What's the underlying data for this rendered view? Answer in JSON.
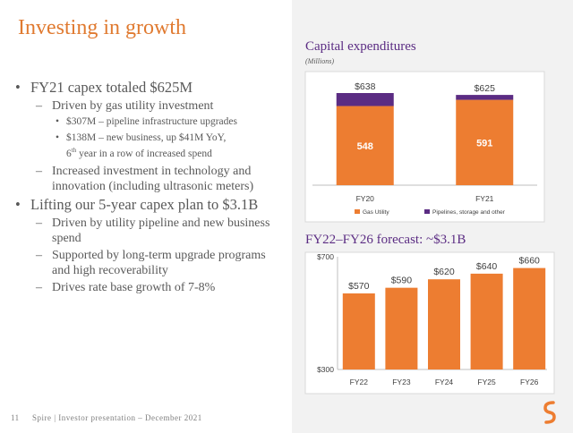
{
  "title": "Investing in growth",
  "bullets": [
    {
      "level": 1,
      "text": "FY21 capex totaled $625M"
    },
    {
      "level": 2,
      "text": "Driven by gas utility investment"
    },
    {
      "level": 3,
      "text": "$307M – pipeline infrastructure upgrades"
    },
    {
      "level": 3,
      "text": "$138M – new business, up $41M YoY,",
      "line2_pre": "6",
      "line2_sup": "th",
      "line2_post": " year in a row of increased spend"
    },
    {
      "level": 2,
      "text": "Increased investment in technology and innovation (including ultrasonic meters)"
    },
    {
      "level": 1,
      "text": "Lifting our 5-year capex plan to $3.1B"
    },
    {
      "level": 2,
      "text": "Driven by utility pipeline and new business spend"
    },
    {
      "level": 2,
      "text": "Supported by long-term upgrade programs and high recoverability"
    },
    {
      "level": 2,
      "text": "Drives rate base growth of 7-8%"
    }
  ],
  "footer": {
    "page": "11",
    "text": "Spire | Investor presentation – December 2021"
  },
  "colors": {
    "orange": "#ED7D31",
    "purple": "#5B2C83",
    "panel": "#F2F2F2"
  },
  "logo_icon": "spire-logo-icon",
  "chart_data": [
    {
      "type": "bar",
      "stacked": true,
      "title": "Capital expenditures",
      "subtitle": "(Millions)",
      "categories": [
        "FY20",
        "FY21"
      ],
      "series": [
        {
          "name": "Gas Utility",
          "values": [
            548,
            591
          ],
          "labels": [
            "548",
            "591"
          ],
          "color": "#ED7D31"
        },
        {
          "name": "Pipelines, storage and other",
          "values": [
            90,
            34
          ],
          "color": "#5B2C83"
        }
      ],
      "totals": [
        "$638",
        "$625"
      ],
      "total_values": [
        638,
        625
      ],
      "ylim": [
        0,
        638
      ],
      "legend": "bottom",
      "grid": false
    },
    {
      "type": "bar",
      "title": "FY22–FY26 forecast: ~$3.1B",
      "categories": [
        "FY22",
        "FY23",
        "FY24",
        "FY25",
        "FY26"
      ],
      "values": [
        570,
        590,
        620,
        640,
        660
      ],
      "value_labels": [
        "$570",
        "$590",
        "$620",
        "$640",
        "$660"
      ],
      "color": "#ED7D31",
      "ylim": [
        300,
        700
      ],
      "yticks": [
        "$300",
        "$700"
      ],
      "ytick_values": [
        300,
        700
      ],
      "grid": false
    }
  ]
}
